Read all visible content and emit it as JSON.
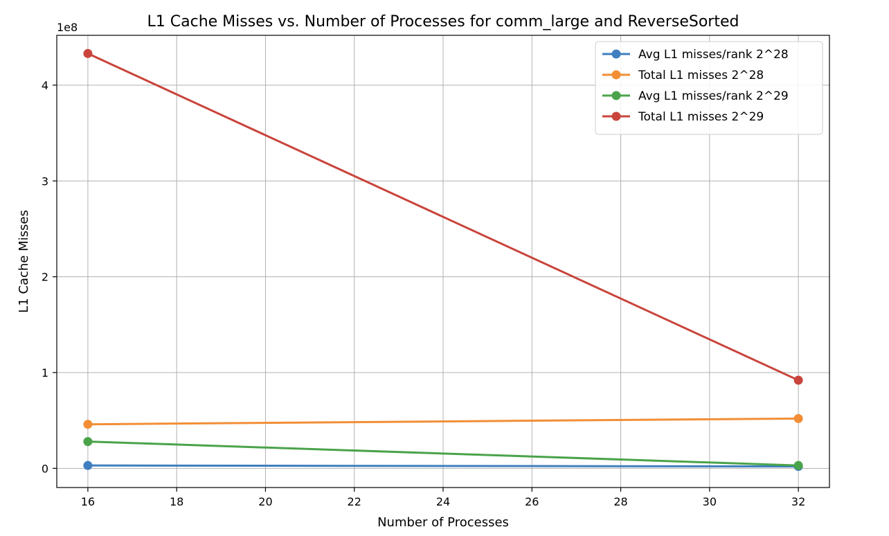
{
  "chart_data": {
    "type": "line",
    "title": "L1 Cache Misses vs. Number of Processes for comm_large and ReverseSorted",
    "xlabel": "Number of Processes",
    "ylabel": "L1 Cache Misses",
    "y_offset_label": "1e8",
    "y_scale_factor": 100000000,
    "xlim": [
      15.3,
      32.7
    ],
    "ylim": [
      -0.2,
      4.52
    ],
    "x_ticks": [
      16,
      18,
      20,
      22,
      24,
      26,
      28,
      30,
      32
    ],
    "y_ticks": [
      0,
      1,
      2,
      3,
      4
    ],
    "grid": true,
    "legend_position": "top-right",
    "x": [
      16,
      32
    ],
    "series": [
      {
        "name": "Avg L1 misses/rank 2^28",
        "color": "#3f7fbf",
        "values": [
          0.03,
          0.02
        ]
      },
      {
        "name": "Total L1 misses 2^28",
        "color": "#f28e36",
        "values": [
          0.46,
          0.52
        ]
      },
      {
        "name": "Avg L1 misses/rank 2^29",
        "color": "#4aa34a",
        "values": [
          0.28,
          0.03
        ]
      },
      {
        "name": "Total L1 misses 2^29",
        "color": "#c9443c",
        "values": [
          4.33,
          0.92
        ]
      }
    ]
  }
}
